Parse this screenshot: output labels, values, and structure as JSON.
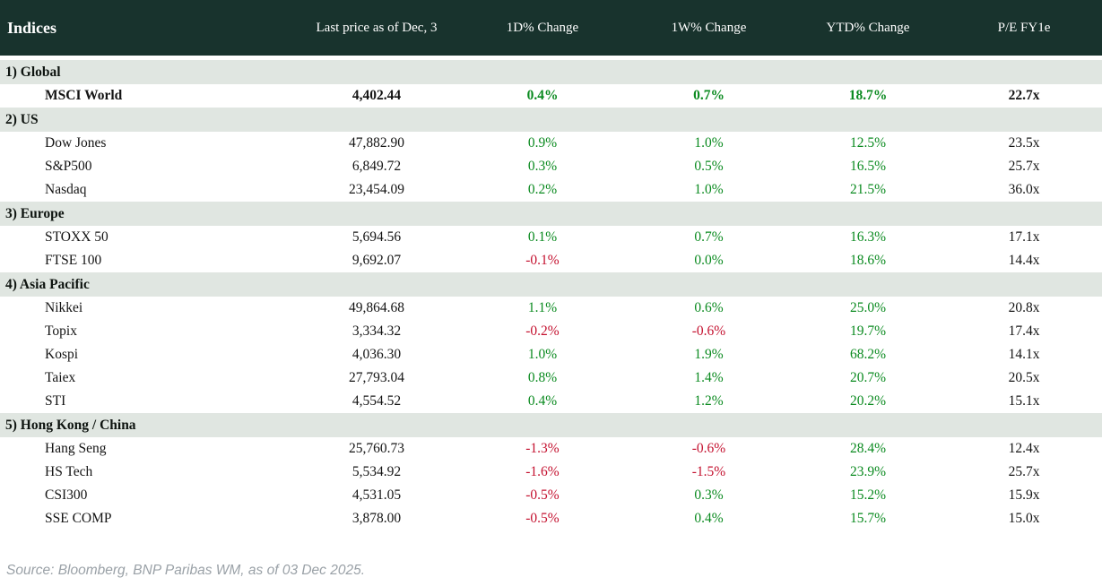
{
  "colors": {
    "header_background": "#18332d",
    "header_text": "#ffffff",
    "section_row_background": "#e0e6e1",
    "positive_value": "#0a8a1f",
    "negative_value": "#c4112f",
    "source_text": "#9aa1a7"
  },
  "table": {
    "headers": [
      "Indices",
      "Last price as of Dec, 3",
      "1D% Change",
      "1W% Change",
      "YTD% Change",
      "P/E FY1e"
    ],
    "sections": [
      {
        "label": "1) Global",
        "rows": [
          {
            "name": "MSCI World",
            "price": "4,402.44",
            "d1": "0.4%",
            "w1": "0.7%",
            "ytd": "18.7%",
            "pe": "22.7x",
            "emphasis": true
          }
        ]
      },
      {
        "label": "2) US",
        "rows": [
          {
            "name": "Dow Jones",
            "price": "47,882.90",
            "d1": "0.9%",
            "w1": "1.0%",
            "ytd": "12.5%",
            "pe": "23.5x",
            "emphasis": false
          },
          {
            "name": "S&P500",
            "price": "6,849.72",
            "d1": "0.3%",
            "w1": "0.5%",
            "ytd": "16.5%",
            "pe": "25.7x",
            "emphasis": false
          },
          {
            "name": "Nasdaq",
            "price": "23,454.09",
            "d1": "0.2%",
            "w1": "1.0%",
            "ytd": "21.5%",
            "pe": "36.0x",
            "emphasis": false
          }
        ]
      },
      {
        "label": "3) Europe",
        "rows": [
          {
            "name": "STOXX 50",
            "price": "5,694.56",
            "d1": "0.1%",
            "w1": "0.7%",
            "ytd": "16.3%",
            "pe": "17.1x",
            "emphasis": false
          },
          {
            "name": "FTSE 100",
            "price": "9,692.07",
            "d1": "-0.1%",
            "w1": "0.0%",
            "ytd": "18.6%",
            "pe": "14.4x",
            "emphasis": false
          }
        ]
      },
      {
        "label": "4) Asia Pacific",
        "rows": [
          {
            "name": "Nikkei",
            "price": "49,864.68",
            "d1": "1.1%",
            "w1": "0.6%",
            "ytd": "25.0%",
            "pe": "20.8x",
            "emphasis": false
          },
          {
            "name": "Topix",
            "price": "3,334.32",
            "d1": "-0.2%",
            "w1": "-0.6%",
            "ytd": "19.7%",
            "pe": "17.4x",
            "emphasis": false
          },
          {
            "name": "Kospi",
            "price": "4,036.30",
            "d1": "1.0%",
            "w1": "1.9%",
            "ytd": "68.2%",
            "pe": "14.1x",
            "emphasis": false
          },
          {
            "name": "Taiex",
            "price": "27,793.04",
            "d1": "0.8%",
            "w1": "1.4%",
            "ytd": "20.7%",
            "pe": "20.5x",
            "emphasis": false
          },
          {
            "name": "STI",
            "price": "4,554.52",
            "d1": "0.4%",
            "w1": "1.2%",
            "ytd": "20.2%",
            "pe": "15.1x",
            "emphasis": false
          }
        ]
      },
      {
        "label": "5) Hong Kong / China",
        "rows": [
          {
            "name": "Hang Seng",
            "price": "25,760.73",
            "d1": "-1.3%",
            "w1": "-0.6%",
            "ytd": "28.4%",
            "pe": "12.4x",
            "emphasis": false
          },
          {
            "name": "HS Tech",
            "price": "5,534.92",
            "d1": "-1.6%",
            "w1": "-1.5%",
            "ytd": "23.9%",
            "pe": "25.7x",
            "emphasis": false
          },
          {
            "name": "CSI300",
            "price": "4,531.05",
            "d1": "-0.5%",
            "w1": "0.3%",
            "ytd": "15.2%",
            "pe": "15.9x",
            "emphasis": false
          },
          {
            "name": "SSE COMP",
            "price": "3,878.00",
            "d1": "-0.5%",
            "w1": "0.4%",
            "ytd": "15.7%",
            "pe": "15.0x",
            "emphasis": false
          }
        ]
      }
    ]
  },
  "footer": {
    "source": "Source: Bloomberg, BNP Paribas WM, as of 03 Dec 2025."
  },
  "chart_data": {
    "type": "table",
    "title": "Indices",
    "columns": [
      "Indices",
      "Last price as of Dec, 3",
      "1D% Change",
      "1W% Change",
      "YTD% Change",
      "P/E FY1e"
    ],
    "groups": [
      "1) Global",
      "2) US",
      "3) Europe",
      "4) Asia Pacific",
      "5) Hong Kong / China"
    ],
    "rows": [
      {
        "group": "1) Global",
        "index": "MSCI World",
        "last_price": 4402.44,
        "chg_1d_pct": 0.4,
        "chg_1w_pct": 0.7,
        "chg_ytd_pct": 18.7,
        "pe_fy1e": 22.7
      },
      {
        "group": "2) US",
        "index": "Dow Jones",
        "last_price": 47882.9,
        "chg_1d_pct": 0.9,
        "chg_1w_pct": 1.0,
        "chg_ytd_pct": 12.5,
        "pe_fy1e": 23.5
      },
      {
        "group": "2) US",
        "index": "S&P500",
        "last_price": 6849.72,
        "chg_1d_pct": 0.3,
        "chg_1w_pct": 0.5,
        "chg_ytd_pct": 16.5,
        "pe_fy1e": 25.7
      },
      {
        "group": "2) US",
        "index": "Nasdaq",
        "last_price": 23454.09,
        "chg_1d_pct": 0.2,
        "chg_1w_pct": 1.0,
        "chg_ytd_pct": 21.5,
        "pe_fy1e": 36.0
      },
      {
        "group": "3) Europe",
        "index": "STOXX 50",
        "last_price": 5694.56,
        "chg_1d_pct": 0.1,
        "chg_1w_pct": 0.7,
        "chg_ytd_pct": 16.3,
        "pe_fy1e": 17.1
      },
      {
        "group": "3) Europe",
        "index": "FTSE 100",
        "last_price": 9692.07,
        "chg_1d_pct": -0.1,
        "chg_1w_pct": 0.0,
        "chg_ytd_pct": 18.6,
        "pe_fy1e": 14.4
      },
      {
        "group": "4) Asia Pacific",
        "index": "Nikkei",
        "last_price": 49864.68,
        "chg_1d_pct": 1.1,
        "chg_1w_pct": 0.6,
        "chg_ytd_pct": 25.0,
        "pe_fy1e": 20.8
      },
      {
        "group": "4) Asia Pacific",
        "index": "Topix",
        "last_price": 3334.32,
        "chg_1d_pct": -0.2,
        "chg_1w_pct": -0.6,
        "chg_ytd_pct": 19.7,
        "pe_fy1e": 17.4
      },
      {
        "group": "4) Asia Pacific",
        "index": "Kospi",
        "last_price": 4036.3,
        "chg_1d_pct": 1.0,
        "chg_1w_pct": 1.9,
        "chg_ytd_pct": 68.2,
        "pe_fy1e": 14.1
      },
      {
        "group": "4) Asia Pacific",
        "index": "Taiex",
        "last_price": 27793.04,
        "chg_1d_pct": 0.8,
        "chg_1w_pct": 1.4,
        "chg_ytd_pct": 20.7,
        "pe_fy1e": 20.5
      },
      {
        "group": "4) Asia Pacific",
        "index": "STI",
        "last_price": 4554.52,
        "chg_1d_pct": 0.4,
        "chg_1w_pct": 1.2,
        "chg_ytd_pct": 20.2,
        "pe_fy1e": 15.1
      },
      {
        "group": "5) Hong Kong / China",
        "index": "Hang Seng",
        "last_price": 25760.73,
        "chg_1d_pct": -1.3,
        "chg_1w_pct": -0.6,
        "chg_ytd_pct": 28.4,
        "pe_fy1e": 12.4
      },
      {
        "group": "5) Hong Kong / China",
        "index": "HS Tech",
        "last_price": 5534.92,
        "chg_1d_pct": -1.6,
        "chg_1w_pct": -1.5,
        "chg_ytd_pct": 23.9,
        "pe_fy1e": 25.7
      },
      {
        "group": "5) Hong Kong / China",
        "index": "CSI300",
        "last_price": 4531.05,
        "chg_1d_pct": -0.5,
        "chg_1w_pct": 0.3,
        "chg_ytd_pct": 15.2,
        "pe_fy1e": 15.9
      },
      {
        "group": "5) Hong Kong / China",
        "index": "SSE COMP",
        "last_price": 3878.0,
        "chg_1d_pct": -0.5,
        "chg_1w_pct": 0.4,
        "chg_ytd_pct": 15.7,
        "pe_fy1e": 15.0
      }
    ],
    "value_color_rule": "negative values red, zero or positive values green; prices and P/E black",
    "source": "Source: Bloomberg, BNP Paribas WM, as of 03 Dec 2025."
  }
}
